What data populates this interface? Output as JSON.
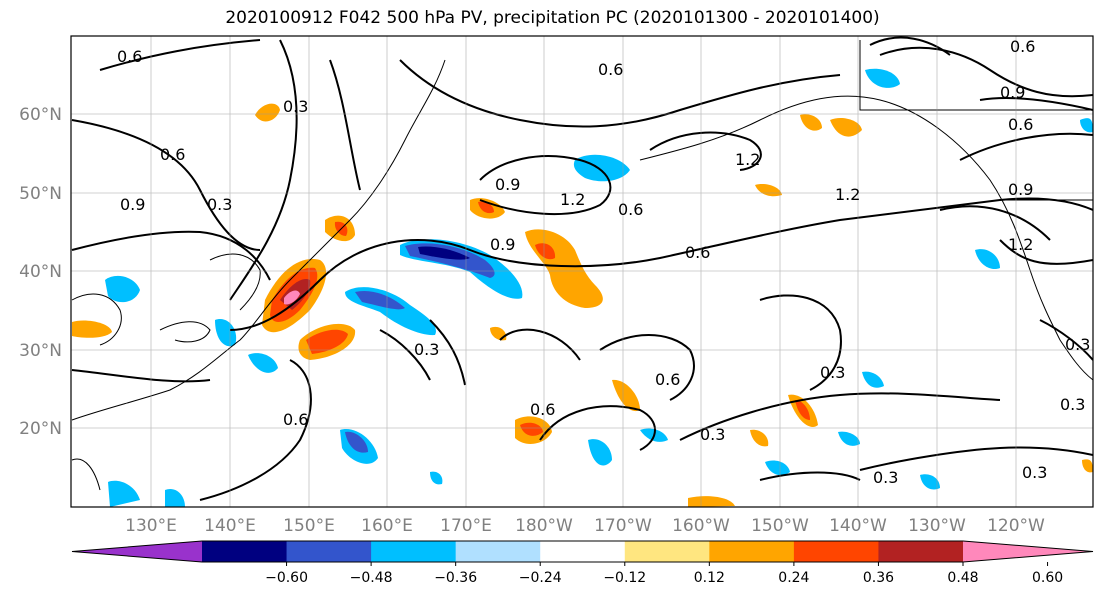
{
  "title": "2020100912 F042 500 hPa PV, precipitation PC (2020101300 - 2020101400)",
  "lon_labels": [
    "130°E",
    "140°E",
    "150°E",
    "160°E",
    "170°E",
    "180°W",
    "170°W",
    "160°W",
    "150°W",
    "140°W",
    "130°W",
    "120°W"
  ],
  "lat_labels": [
    "60°N",
    "50°N",
    "40°N",
    "30°N",
    "20°N"
  ],
  "contour_labels": [
    "0.6",
    "0.3",
    "0.6",
    "0.9",
    "0.3",
    "0.9",
    "1.2",
    "0.9",
    "0.6",
    "1.2",
    "1.2",
    "0.9",
    "0.6",
    "0.9",
    "0.6",
    "1.2",
    "0.6",
    "0.3",
    "0.6",
    "0.6",
    "0.3",
    "0.3",
    "0.3",
    "0.3",
    "0.3",
    "0.6",
    "0.6",
    "0.3"
  ],
  "colorbar": {
    "ticks": [
      "−0.60",
      "−0.48",
      "−0.36",
      "−0.24",
      "−0.12",
      "0.12",
      "0.24",
      "0.36",
      "0.48",
      "0.60"
    ],
    "colors": [
      "#9932cc",
      "#000080",
      "#3355cc",
      "#00bfff",
      "#b0e0ff",
      "#ffffff",
      "#ffe680",
      "#ffa500",
      "#ff4500",
      "#b22222",
      "#ff88bb"
    ]
  }
}
